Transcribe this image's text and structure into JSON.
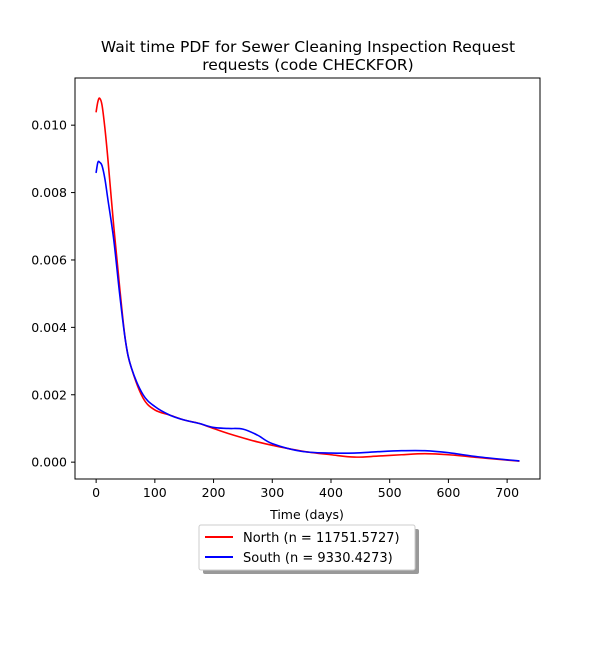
{
  "chart_data": {
    "type": "line",
    "title": "Wait time PDF for Sewer Cleaning Inspection Request\nrequests (code CHECKFOR)",
    "title_lines": [
      "Wait time PDF for Sewer Cleaning Inspection Request",
      "requests (code CHECKFOR)"
    ],
    "xlabel": "Time (days)",
    "ylabel": "",
    "xlim": [
      -36,
      756
    ],
    "ylim": [
      -0.0005,
      0.0114
    ],
    "x_ticks": [
      0,
      100,
      200,
      300,
      400,
      500,
      600,
      700
    ],
    "x_tick_labels": [
      "0",
      "100",
      "200",
      "300",
      "400",
      "500",
      "600",
      "700"
    ],
    "y_ticks": [
      0.0,
      0.002,
      0.004,
      0.006,
      0.008,
      0.01
    ],
    "y_tick_labels": [
      "0.000",
      "0.002",
      "0.004",
      "0.006",
      "0.008",
      "0.010"
    ],
    "grid": false,
    "legend_position": "bottom-center-outside",
    "series": [
      {
        "name": "North (n = 11751.5727)",
        "color": "#ff0000",
        "x": [
          0,
          3,
          6,
          10,
          15,
          20,
          30,
          40,
          50,
          60,
          80,
          100,
          125,
          150,
          175,
          200,
          225,
          250,
          275,
          300,
          350,
          400,
          440,
          480,
          520,
          560,
          600,
          650,
          700,
          720
        ],
        "y": [
          0.0104,
          0.0107,
          0.0108,
          0.0106,
          0.0099,
          0.009,
          0.007,
          0.0052,
          0.0036,
          0.0028,
          0.0019,
          0.00155,
          0.0014,
          0.00125,
          0.00115,
          0.001,
          0.00085,
          0.00072,
          0.0006,
          0.0005,
          0.00033,
          0.00022,
          0.00015,
          0.00018,
          0.00022,
          0.00025,
          0.00022,
          0.00014,
          6e-05,
          3e-05
        ]
      },
      {
        "name": "South (n = 9330.4273)",
        "color": "#0000ff",
        "x": [
          0,
          3,
          6,
          10,
          15,
          20,
          30,
          40,
          50,
          60,
          80,
          100,
          125,
          150,
          175,
          200,
          225,
          250,
          275,
          300,
          350,
          400,
          440,
          480,
          520,
          560,
          600,
          650,
          700,
          720
        ],
        "y": [
          0.0086,
          0.0089,
          0.0089,
          0.0088,
          0.0084,
          0.0078,
          0.0066,
          0.005,
          0.0036,
          0.0028,
          0.002,
          0.00165,
          0.0014,
          0.00125,
          0.00115,
          0.00103,
          0.001,
          0.00098,
          0.0008,
          0.00055,
          0.00032,
          0.00027,
          0.00027,
          0.00031,
          0.00034,
          0.00034,
          0.00028,
          0.00016,
          7e-05,
          4e-05
        ]
      }
    ]
  }
}
